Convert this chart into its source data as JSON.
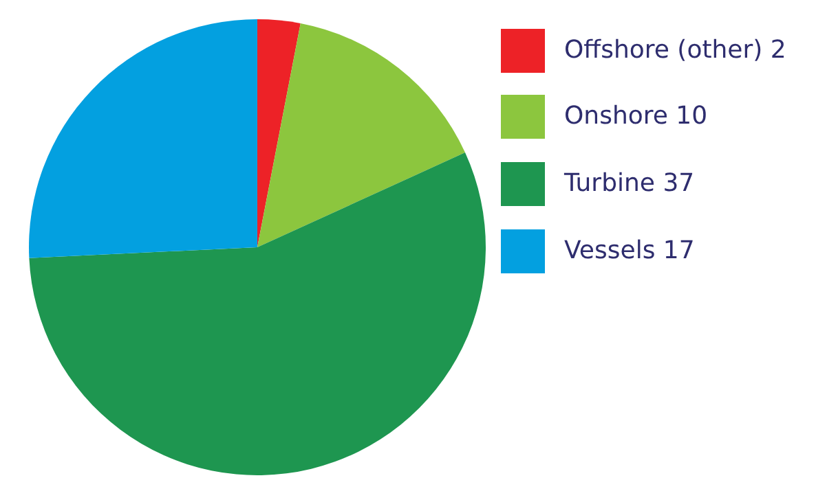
{
  "chart_data": {
    "type": "pie",
    "categories": [
      "Offshore (other) 2",
      "Onshore 10",
      "Turbine 37",
      "Vessels 17"
    ],
    "values": [
      2,
      10,
      37,
      17
    ],
    "colors": [
      "#ed2227",
      "#8cc63e",
      "#1e9650",
      "#03a0e0"
    ],
    "legend": "right"
  }
}
